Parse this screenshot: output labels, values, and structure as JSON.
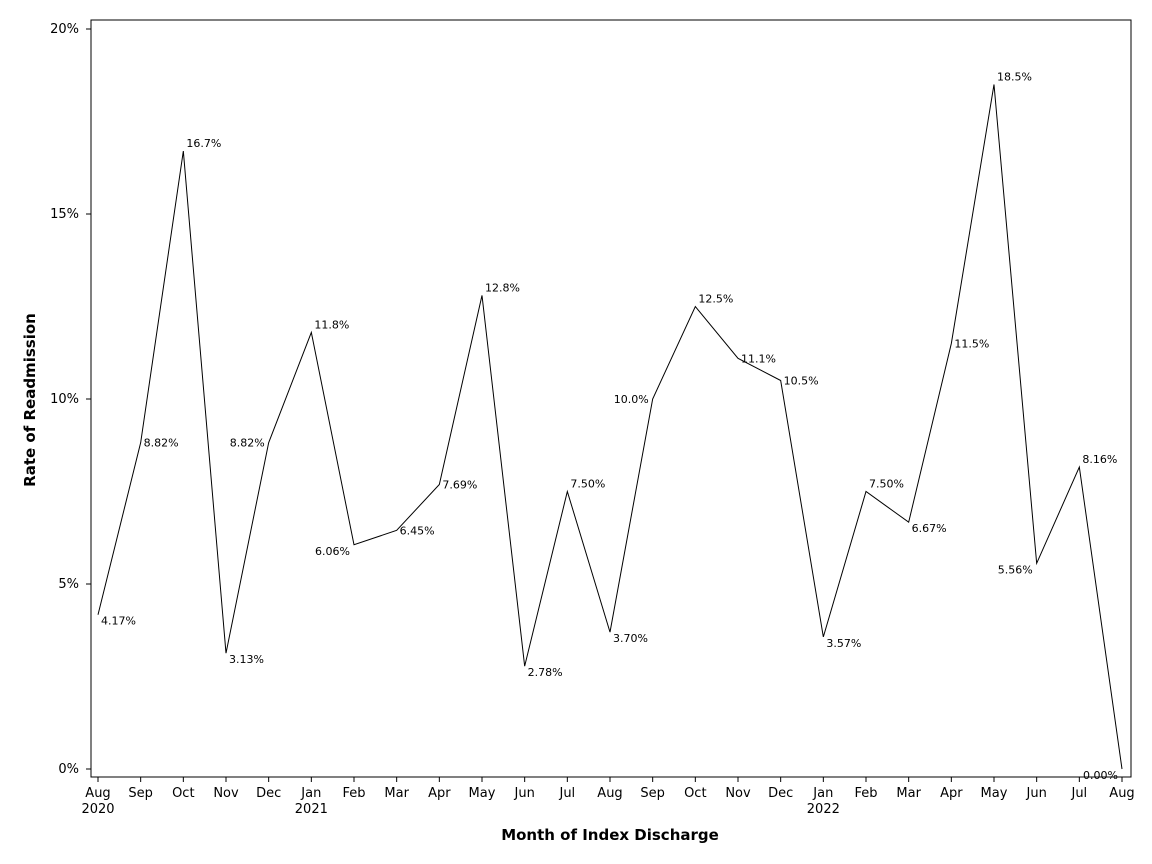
{
  "chart_data": {
    "type": "line",
    "title": "",
    "xlabel": "Month of Index Discharge",
    "ylabel": "Rate of Readmission",
    "ylim": [
      0,
      20
    ],
    "y_ticks": [
      0,
      5,
      10,
      15,
      20
    ],
    "y_tick_labels": [
      "0%",
      "5%",
      "10%",
      "15%",
      "20%"
    ],
    "x_tick_labels": [
      "Aug",
      "Sep",
      "Oct",
      "Nov",
      "Dec",
      "Jan",
      "Feb",
      "Mar",
      "Apr",
      "May",
      "Jun",
      "Jul",
      "Aug",
      "Sep",
      "Oct",
      "Nov",
      "Dec",
      "Jan",
      "Feb",
      "Mar",
      "Apr",
      "May",
      "Jun",
      "Jul",
      "Aug"
    ],
    "year_labels": [
      {
        "index": 0,
        "label": "2020"
      },
      {
        "index": 5,
        "label": "2021"
      },
      {
        "index": 17,
        "label": "2022"
      }
    ],
    "values": [
      4.17,
      8.82,
      16.7,
      3.13,
      8.82,
      11.8,
      6.06,
      6.45,
      7.69,
      12.8,
      2.78,
      7.5,
      3.7,
      10.0,
      12.5,
      11.1,
      10.5,
      3.57,
      7.5,
      6.67,
      11.5,
      18.5,
      5.56,
      8.16,
      0.0
    ],
    "data_labels": [
      "4.17%",
      "8.82%",
      "16.7%",
      "3.13%",
      "8.82%",
      "11.8%",
      "6.06%",
      "6.45%",
      "7.69%",
      "12.8%",
      "2.78%",
      "7.50%",
      "3.70%",
      "10.0%",
      "12.5%",
      "11.1%",
      "10.5%",
      "3.57%",
      "7.50%",
      "6.67%",
      "11.5%",
      "18.5%",
      "5.56%",
      "8.16%",
      "0.00%"
    ],
    "label_sides": [
      "r",
      "r",
      "r",
      "r",
      "l",
      "r",
      "l",
      "r",
      "r",
      "r",
      "r",
      "r",
      "r",
      "l",
      "r",
      "r",
      "r",
      "r",
      "r",
      "r",
      "r",
      "r",
      "l",
      "r",
      "l"
    ],
    "grid": false,
    "legend": "none"
  }
}
